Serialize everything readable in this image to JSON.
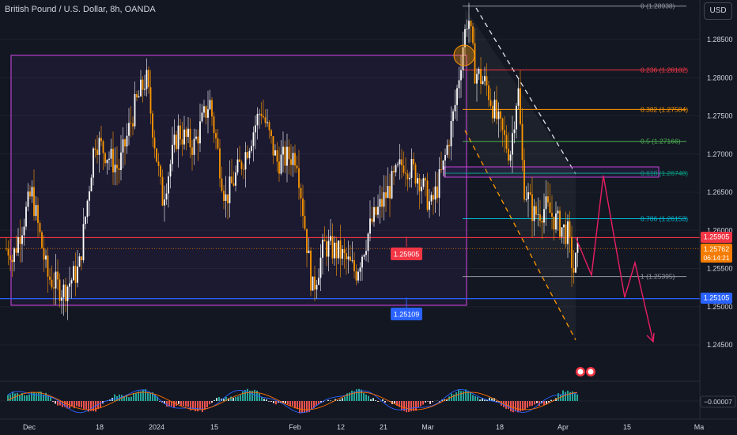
{
  "header": {
    "symbol_title": "British Pound / U.S. Dollar, 8h, OANDA",
    "currency_button": "USD"
  },
  "chart_data": {
    "type": "candlestick",
    "price_axis_ticks": [
      "1.28500",
      "1.28000",
      "1.27500",
      "1.27000",
      "1.26500",
      "1.26000",
      "1.25500",
      "1.25000",
      "1.24500"
    ],
    "price_axis_values": [
      1.285,
      1.28,
      1.275,
      1.27,
      1.265,
      1.26,
      1.255,
      1.25,
      1.245
    ],
    "ylim": [
      1.2418,
      1.2902
    ],
    "x_ticks": [
      "Dec",
      "18",
      "2024",
      "15",
      "Feb",
      "12",
      "21",
      "Mar",
      "18",
      "Apr",
      "15",
      "Ma"
    ],
    "fib_levels": [
      {
        "label": "0 (1.28938)",
        "value": 1.28938,
        "color": "#9598a1"
      },
      {
        "label": "0.236 (1.28102)",
        "value": 1.28102,
        "color": "#f23645"
      },
      {
        "label": "0.382 (1.27584)",
        "value": 1.27584,
        "color": "#ff9800"
      },
      {
        "label": "0.5 (1.27166)",
        "value": 1.27166,
        "color": "#4caf50"
      },
      {
        "label": "0.618 (1.26748)",
        "value": 1.26748,
        "color": "#089981"
      },
      {
        "label": "0.786 (1.26153)",
        "value": 1.26153,
        "color": "#00bcd4"
      },
      {
        "label": "1 (1.25395)",
        "value": 1.25395,
        "color": "#9598a1"
      }
    ],
    "horizontal_levels": [
      {
        "label": "1.25905",
        "value": 1.25905,
        "color": "#f23645"
      },
      {
        "label": "1.25105",
        "value": 1.25105,
        "color": "#2962ff"
      }
    ],
    "range_box_labels": [
      "1.25905",
      "1.25109"
    ],
    "current_price": {
      "value": "1.25762",
      "countdown": "06:14:21",
      "color": "#f57c00"
    },
    "oscillator": {
      "value_label": "−0.00007"
    },
    "candles_description": "GBP/USD 8h candles oscillating 1.2500-1.2820 Dec-Feb, spike to 1.2894 early Mar, decline to ~1.2540 by Apr"
  }
}
